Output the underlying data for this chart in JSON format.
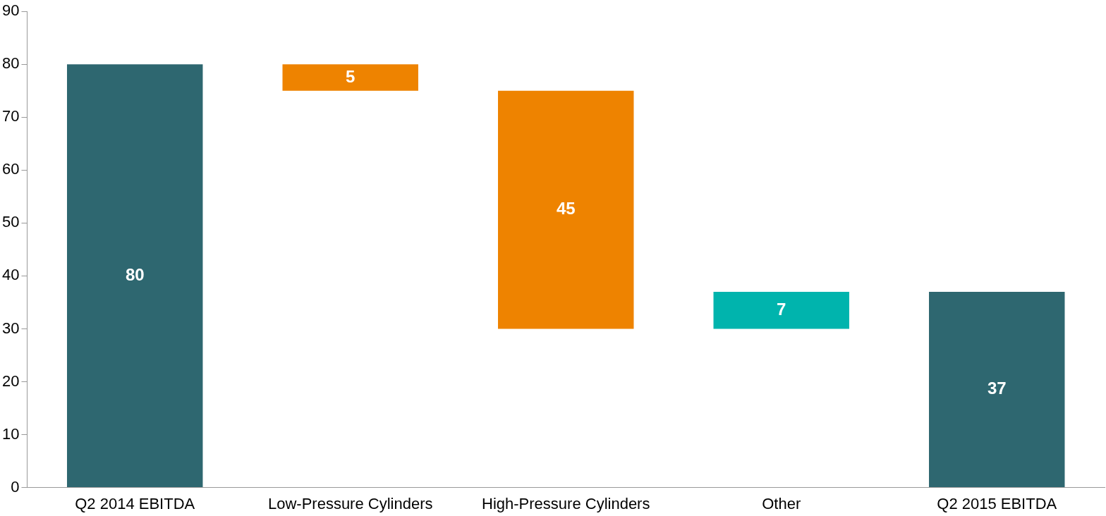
{
  "chart_data": {
    "type": "bar",
    "categories": [
      "Q2 2014 EBITDA",
      "Low-Pressure Cylinders",
      "High-Pressure Cylinders",
      "Other",
      "Q2 2015 EBITDA"
    ],
    "values": [
      80,
      5,
      45,
      7,
      37
    ],
    "base": [
      0,
      75,
      30,
      30,
      0
    ],
    "colors": [
      "#2e6770",
      "#ee8300",
      "#ee8300",
      "#00b4ad",
      "#2e6770"
    ],
    "ylim": [
      0,
      90
    ],
    "yticks": [
      0,
      10,
      20,
      30,
      40,
      50,
      60,
      70,
      80,
      90
    ],
    "grid": false,
    "legend": false,
    "data_labels": true
  }
}
